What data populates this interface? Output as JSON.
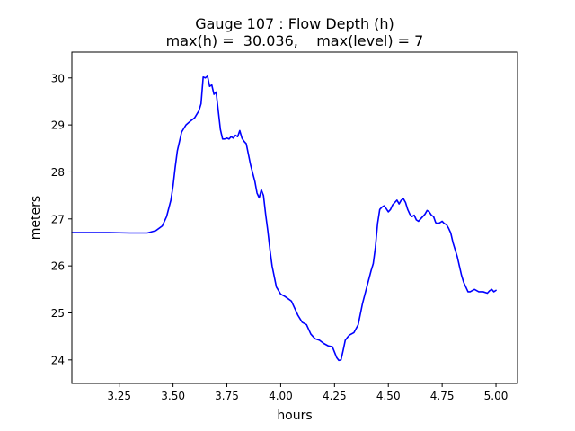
{
  "chart_data": {
    "type": "line",
    "title_line1": "Gauge 107 : Flow Depth (h)",
    "title_line2": "max(h) =  30.036,    max(level) = 7",
    "xlabel": "hours",
    "ylabel": "meters",
    "xlim": [
      3.03,
      5.1
    ],
    "ylim": [
      23.5,
      30.55
    ],
    "xticks": [
      3.25,
      3.5,
      3.75,
      4.0,
      4.25,
      4.5,
      4.75,
      5.0
    ],
    "xtick_labels": [
      "3.25",
      "3.50",
      "3.75",
      "4.00",
      "4.25",
      "4.50",
      "4.75",
      "5.00"
    ],
    "yticks": [
      24,
      25,
      26,
      27,
      28,
      29,
      30
    ],
    "ytick_labels": [
      "24",
      "25",
      "26",
      "27",
      "28",
      "29",
      "30"
    ],
    "grid": false,
    "series": [
      {
        "color": "#0000ff",
        "x": [
          3.03,
          3.1,
          3.2,
          3.3,
          3.38,
          3.42,
          3.45,
          3.47,
          3.49,
          3.5,
          3.51,
          3.52,
          3.54,
          3.56,
          3.58,
          3.6,
          3.62,
          3.63,
          3.64,
          3.65,
          3.66,
          3.67,
          3.68,
          3.69,
          3.7,
          3.71,
          3.72,
          3.73,
          3.74,
          3.75,
          3.76,
          3.77,
          3.78,
          3.79,
          3.8,
          3.81,
          3.82,
          3.83,
          3.84,
          3.86,
          3.88,
          3.89,
          3.9,
          3.91,
          3.92,
          3.93,
          3.94,
          3.95,
          3.96,
          3.98,
          4.0,
          4.02,
          4.05,
          4.08,
          4.1,
          4.12,
          4.14,
          4.16,
          4.18,
          4.2,
          4.22,
          4.24,
          4.26,
          4.27,
          4.28,
          4.29,
          4.3,
          4.31,
          4.32,
          4.34,
          4.36,
          4.38,
          4.4,
          4.42,
          4.43,
          4.44,
          4.45,
          4.46,
          4.47,
          4.48,
          4.49,
          4.5,
          4.51,
          4.52,
          4.53,
          4.54,
          4.55,
          4.56,
          4.57,
          4.58,
          4.59,
          4.6,
          4.61,
          4.62,
          4.63,
          4.64,
          4.65,
          4.66,
          4.67,
          4.68,
          4.69,
          4.7,
          4.71,
          4.72,
          4.73,
          4.74,
          4.75,
          4.76,
          4.77,
          4.78,
          4.79,
          4.8,
          4.81,
          4.82,
          4.83,
          4.84,
          4.85,
          4.86,
          4.87,
          4.88,
          4.9,
          4.92,
          4.94,
          4.96,
          4.97,
          4.98,
          4.99,
          5.0
        ],
        "y": [
          26.71,
          26.71,
          26.71,
          26.7,
          26.7,
          26.75,
          26.85,
          27.05,
          27.4,
          27.7,
          28.1,
          28.45,
          28.85,
          29.0,
          29.08,
          29.15,
          29.3,
          29.45,
          30.02,
          30.0,
          30.04,
          29.82,
          29.85,
          29.65,
          29.7,
          29.3,
          28.9,
          28.7,
          28.7,
          28.72,
          28.7,
          28.75,
          28.72,
          28.78,
          28.75,
          28.88,
          28.72,
          28.65,
          28.6,
          28.15,
          27.8,
          27.55,
          27.45,
          27.62,
          27.5,
          27.1,
          26.75,
          26.35,
          26.0,
          25.55,
          25.4,
          25.35,
          25.25,
          24.95,
          24.8,
          24.75,
          24.55,
          24.45,
          24.42,
          24.35,
          24.3,
          24.28,
          24.05,
          23.99,
          24.0,
          24.2,
          24.42,
          24.48,
          24.53,
          24.58,
          24.75,
          25.2,
          25.55,
          25.9,
          26.05,
          26.4,
          26.9,
          27.2,
          27.25,
          27.28,
          27.22,
          27.15,
          27.2,
          27.3,
          27.35,
          27.4,
          27.32,
          27.4,
          27.43,
          27.35,
          27.2,
          27.1,
          27.05,
          27.08,
          26.98,
          26.95,
          27.0,
          27.05,
          27.1,
          27.18,
          27.15,
          27.08,
          27.05,
          26.92,
          26.9,
          26.92,
          26.95,
          26.9,
          26.88,
          26.8,
          26.7,
          26.5,
          26.35,
          26.2,
          26.0,
          25.8,
          25.65,
          25.55,
          25.45,
          25.45,
          25.5,
          25.45,
          25.45,
          25.42,
          25.47,
          25.5,
          25.45,
          25.48
        ]
      }
    ]
  }
}
